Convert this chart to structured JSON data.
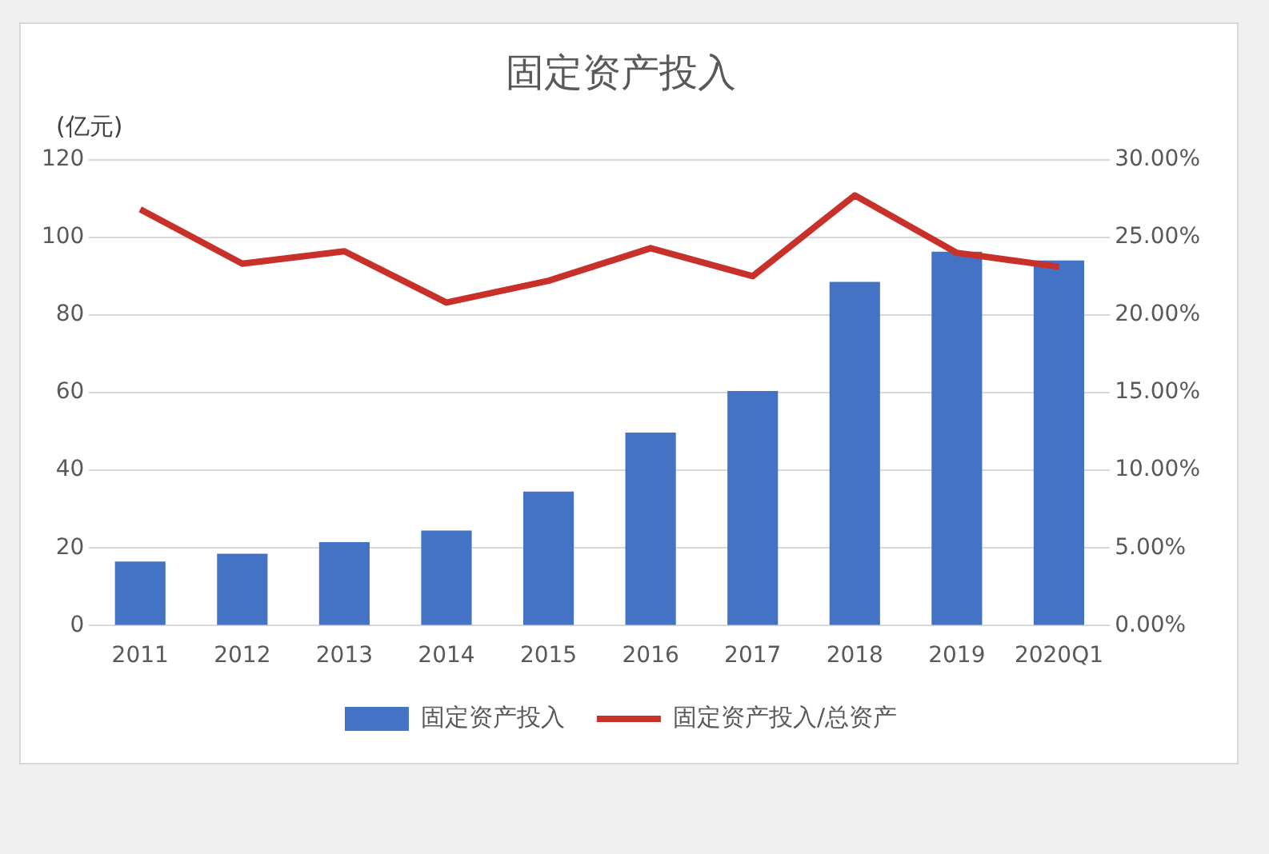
{
  "chart_data": {
    "type": "bar",
    "title": "固定资产投入",
    "ylabel": "(亿元)",
    "categories": [
      "2011",
      "2012",
      "2013",
      "2014",
      "2015",
      "2016",
      "2017",
      "2018",
      "2019",
      "2020Q1"
    ],
    "series": [
      {
        "name": "固定资产投入",
        "color": "#4472c4",
        "values": [
          16.5,
          18.5,
          21.5,
          24.5,
          34.5,
          49.7,
          60.4,
          88.5,
          96.3,
          94
        ]
      },
      {
        "name": "固定资产投入/总资产",
        "type": "line",
        "axis": "y2",
        "color": "#c8302a",
        "values": [
          26.8,
          23.3,
          24.1,
          20.8,
          22.2,
          24.3,
          22.5,
          27.7,
          24.0,
          23.1
        ]
      }
    ],
    "ylim": [
      0,
      120
    ],
    "yticks": [
      0,
      20,
      40,
      60,
      80,
      100,
      120
    ],
    "y2lim": [
      0,
      30
    ],
    "y2ticks": [
      {
        "value": 0,
        "label": "0.00%"
      },
      {
        "value": 5,
        "label": "5.00%"
      },
      {
        "value": 10,
        "label": "10.00%"
      },
      {
        "value": 15,
        "label": "15.00%"
      },
      {
        "value": 20,
        "label": "20.00%"
      },
      {
        "value": 25,
        "label": "25.00%"
      },
      {
        "value": 30,
        "label": "30.00%"
      }
    ],
    "grid": "y",
    "legend": "bottom",
    "marker": "none",
    "line_style": "solid"
  }
}
